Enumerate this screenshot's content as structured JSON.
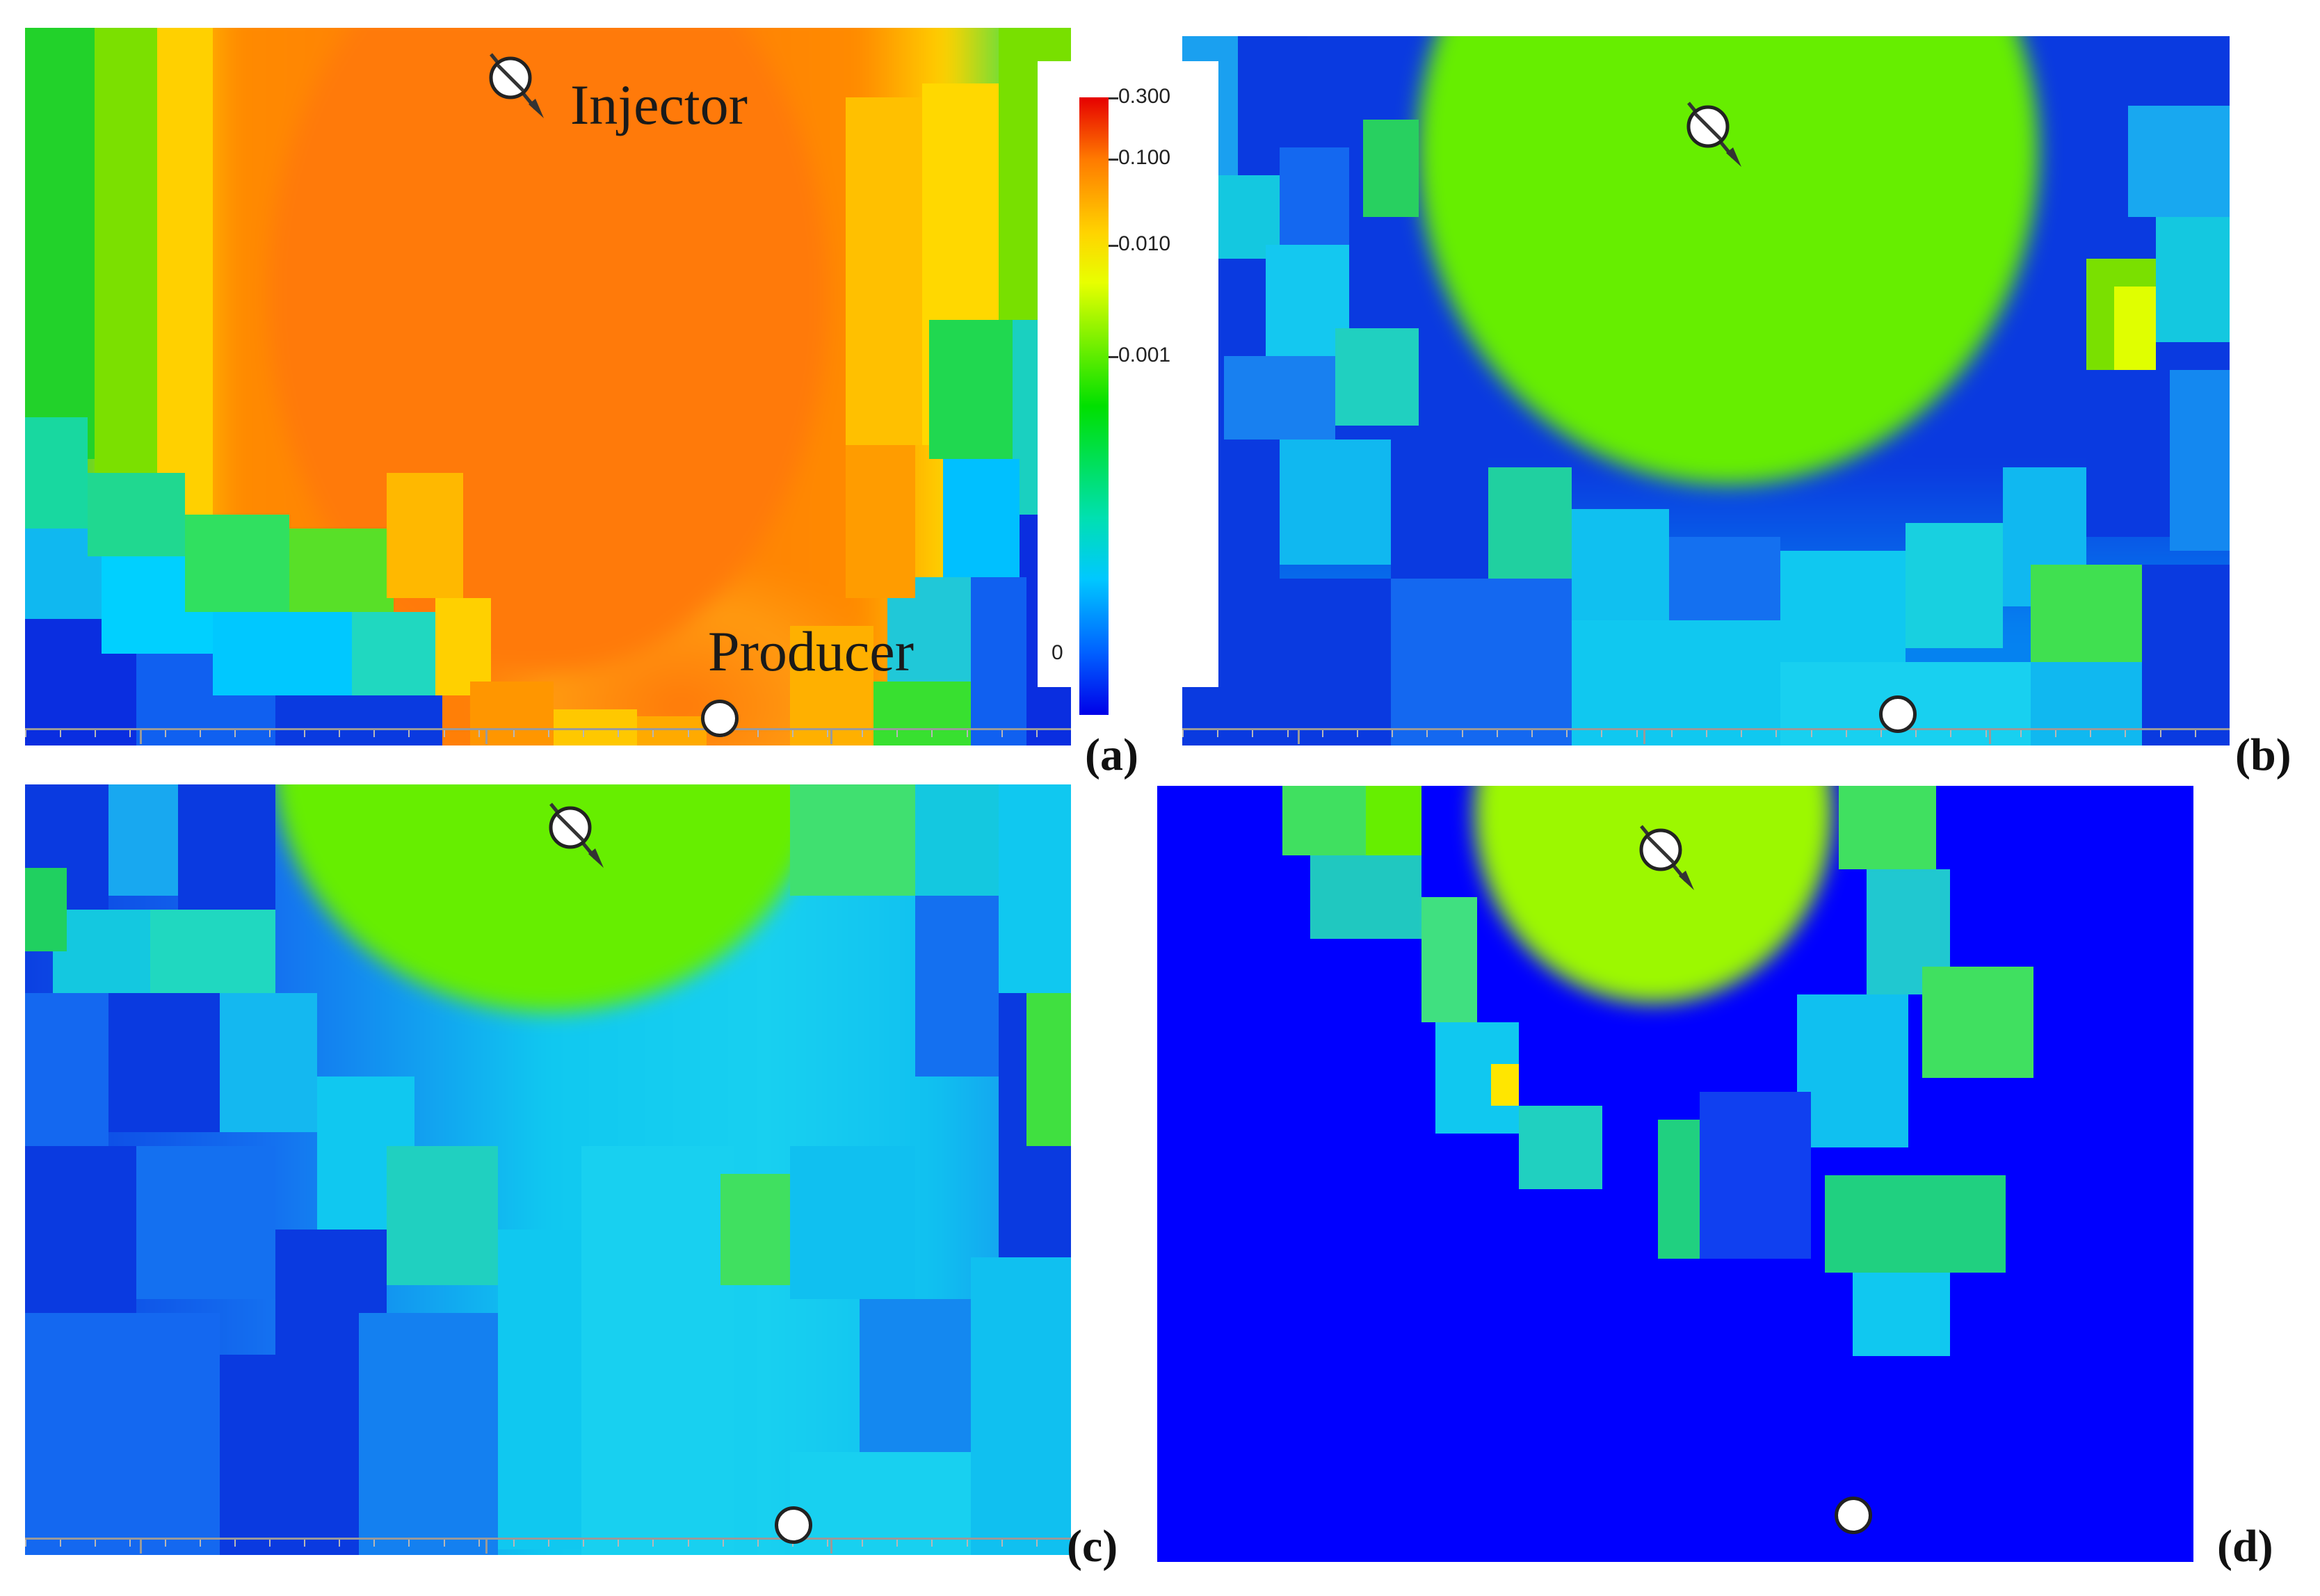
{
  "figure": {
    "panels": [
      {
        "id": "a",
        "label": "(a)",
        "base_color": "#0a2ee0"
      },
      {
        "id": "b",
        "label": "(b)",
        "base_color": "#0a2ee0"
      },
      {
        "id": "c",
        "label": "(c)",
        "base_color": "#0a2ee0"
      },
      {
        "id": "d",
        "label": "(d)",
        "base_color": "#0000ff"
      }
    ],
    "annotations": {
      "injector": "Injector",
      "producer": "Producer"
    },
    "colorbar": {
      "ticks": [
        "0.300",
        "0.100",
        "0.010",
        "0.001",
        "0"
      ],
      "scale": "log",
      "colors": [
        "#e60000",
        "#ff7a00",
        "#ffd400",
        "#00e000",
        "#00c8ff",
        "#0000e8"
      ]
    },
    "colors": {
      "orange": "#ff7a0a",
      "green": "#66ee00",
      "cyan": "#00d0ff",
      "blue": "#0a3ae0",
      "yellow": "#ffd600"
    }
  }
}
